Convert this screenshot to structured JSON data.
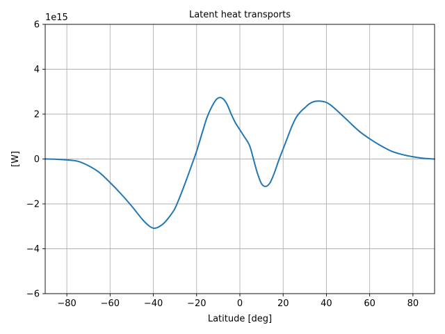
{
  "chart_data": {
    "type": "line",
    "title": "Latent heat transports",
    "xlabel": "Latitude [deg]",
    "ylabel": "[W]",
    "offset_label": "1e15",
    "xlim": [
      -90,
      90
    ],
    "ylim": [
      -6,
      6
    ],
    "grid": true,
    "color": "#1f77b4",
    "x_ticks": [
      -80,
      -60,
      -40,
      -20,
      0,
      20,
      40,
      60,
      80
    ],
    "x_tick_labels": [
      "−80",
      "−60",
      "−40",
      "−20",
      "0",
      "20",
      "40",
      "60",
      "80"
    ],
    "y_ticks": [
      -6,
      -4,
      -2,
      0,
      2,
      4,
      6
    ],
    "y_tick_labels": [
      "−6",
      "−4",
      "−2",
      "0",
      "2",
      "4",
      "6"
    ],
    "series": [
      {
        "x": [
          -90,
          -85,
          -80,
          -75,
          -70,
          -65,
          -60,
          -55,
          -50,
          -45,
          -42,
          -40,
          -38,
          -35,
          -32,
          -30,
          -28,
          -25,
          -22,
          -20,
          -17,
          -15,
          -12,
          -10,
          -8,
          -6,
          -4,
          -2,
          0,
          2,
          4,
          5,
          6,
          8,
          10,
          12,
          14,
          16,
          18,
          20,
          22,
          24,
          26,
          28,
          30,
          32,
          34,
          36,
          38,
          40,
          42,
          45,
          50,
          55,
          60,
          65,
          70,
          75,
          80,
          85,
          90
        ],
        "values": [
          0.0,
          -0.01,
          -0.04,
          -0.1,
          -0.3,
          -0.6,
          -1.05,
          -1.55,
          -2.1,
          -2.7,
          -2.98,
          -3.08,
          -3.05,
          -2.85,
          -2.5,
          -2.2,
          -1.75,
          -1.0,
          -0.2,
          0.35,
          1.3,
          1.9,
          2.5,
          2.72,
          2.7,
          2.45,
          2.0,
          1.6,
          1.3,
          1.0,
          0.7,
          0.45,
          0.1,
          -0.6,
          -1.1,
          -1.22,
          -1.05,
          -0.6,
          -0.05,
          0.45,
          0.95,
          1.45,
          1.85,
          2.1,
          2.28,
          2.45,
          2.55,
          2.58,
          2.57,
          2.52,
          2.4,
          2.15,
          1.7,
          1.25,
          0.9,
          0.6,
          0.35,
          0.2,
          0.1,
          0.03,
          0.0
        ]
      }
    ]
  }
}
